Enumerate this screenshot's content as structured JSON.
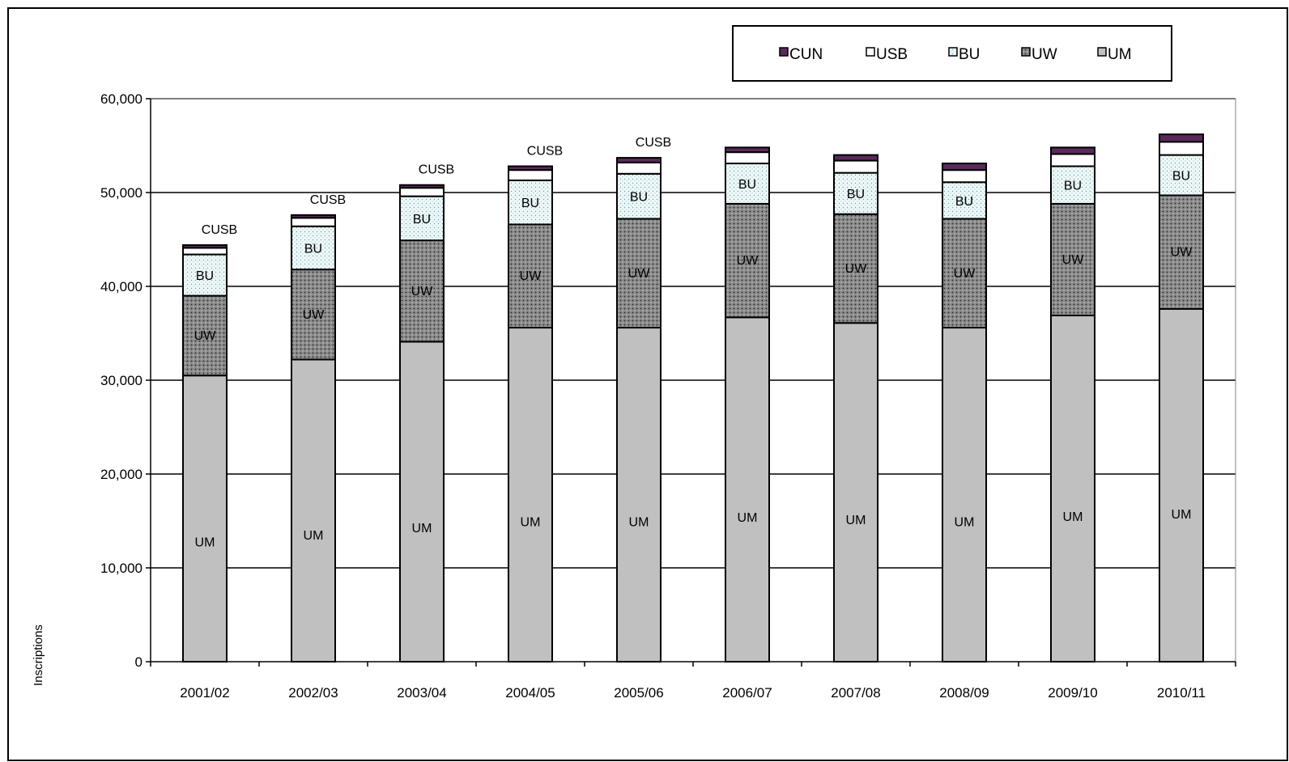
{
  "chart_data": {
    "type": "bar",
    "stacked": true,
    "categories": [
      "2001/02",
      "2002/03",
      "2003/04",
      "2004/05",
      "2005/06",
      "2006/07",
      "2007/08",
      "2008/09",
      "2009/10",
      "2010/11"
    ],
    "ylabel": "Inscriptions",
    "ylim": [
      0,
      60000
    ],
    "yticks": [
      0,
      10000,
      20000,
      30000,
      40000,
      50000,
      60000
    ],
    "ytick_labels": [
      "0",
      "10,000",
      "20,000",
      "30,000",
      "40,000",
      "50,000",
      "60,000"
    ],
    "grid": true,
    "legend_position": "top-right",
    "series": [
      {
        "name": "UM",
        "color": "#c0c0c0",
        "pattern": "solid",
        "values": [
          30500,
          32200,
          34100,
          35600,
          35600,
          36700,
          36100,
          35600,
          36900,
          37600
        ]
      },
      {
        "name": "UW",
        "color": "#808080",
        "pattern": "dots-dark",
        "values": [
          8500,
          9600,
          10800,
          11000,
          11600,
          12100,
          11600,
          11600,
          11900,
          12100
        ]
      },
      {
        "name": "BU",
        "color": "#e6f4f4",
        "pattern": "dots-light",
        "values": [
          4400,
          4600,
          4700,
          4700,
          4800,
          4300,
          4400,
          3900,
          4000,
          4300
        ]
      },
      {
        "name": "USB",
        "color": "#ffffff",
        "pattern": "solid",
        "values": [
          700,
          900,
          900,
          1100,
          1200,
          1200,
          1300,
          1300,
          1300,
          1400
        ]
      },
      {
        "name": "CUN",
        "color": "#5a2a5a",
        "pattern": "solid",
        "values": [
          300,
          300,
          300,
          400,
          500,
          500,
          600,
          700,
          700,
          800
        ]
      }
    ],
    "legend_order": [
      "CUN",
      "USB",
      "BU",
      "UW",
      "UM"
    ],
    "segment_labels": {
      "UM": "UM",
      "BU": "BU",
      "CUSB": "CUSB",
      "UW_bars": [
        "UW",
        "UW",
        "UW",
        "UW",
        "UW",
        "UW",
        "UW",
        "UW",
        "UW",
        "UW"
      ]
    },
    "cusb_label_bars": [
      0,
      1,
      2,
      3,
      4
    ]
  }
}
